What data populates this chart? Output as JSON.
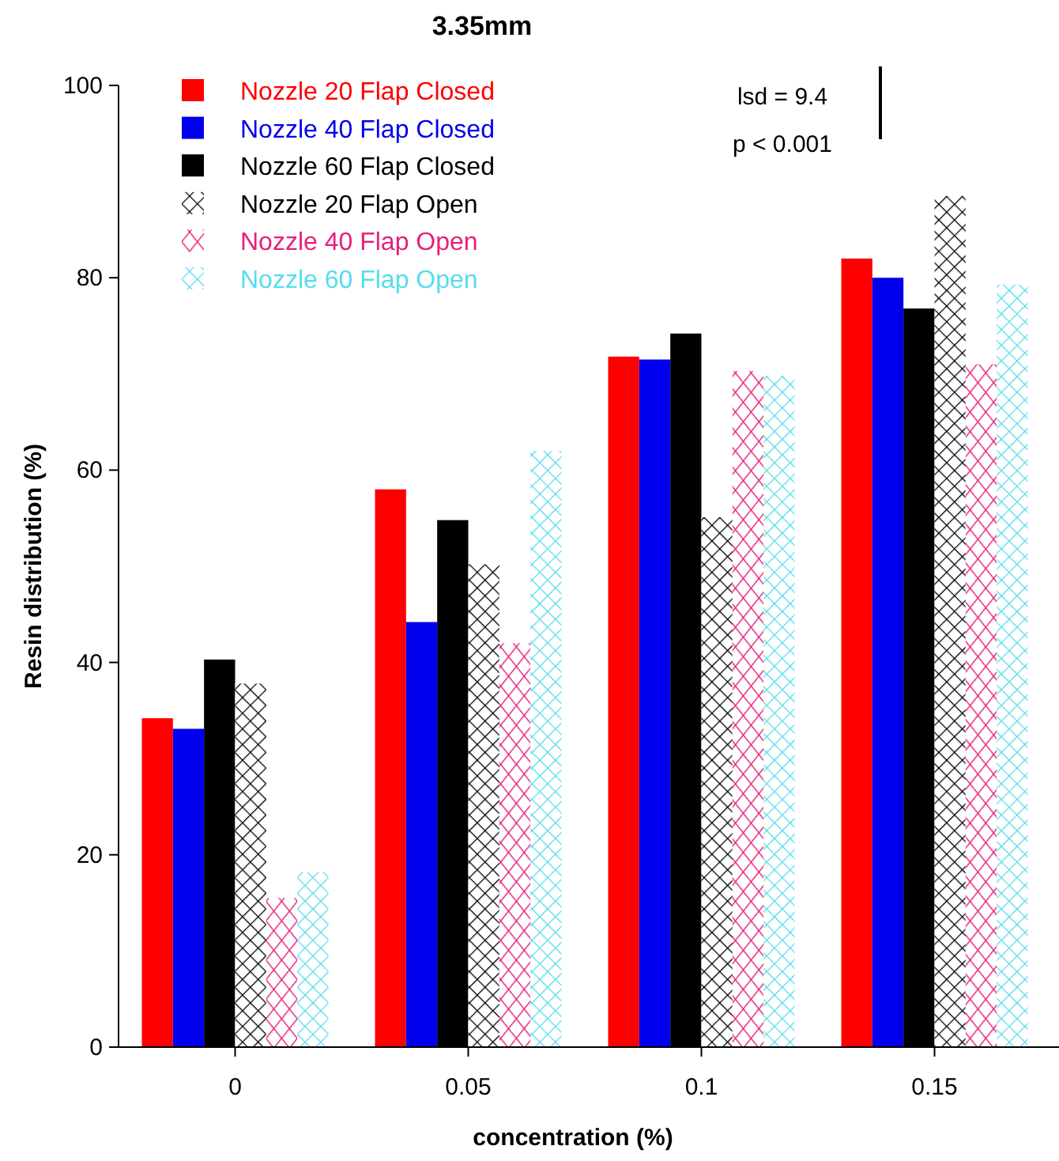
{
  "chart_data": {
    "type": "bar",
    "title": "3.35mm",
    "xlabel": "concentration (%)",
    "ylabel": "Resin distribution (%)",
    "categories": [
      "0",
      "0.05",
      "0.1",
      "0.15"
    ],
    "series": [
      {
        "name": "Nozzle 20 Flap Closed",
        "color": "#ff0000",
        "values": [
          34.2,
          58,
          71.8,
          82
        ]
      },
      {
        "name": "Nozzle 40 Flap Closed",
        "color": "#0000ee",
        "values": [
          33.1,
          44.2,
          71.5,
          80
        ]
      },
      {
        "name": "Nozzle 60 Flap Closed",
        "color": "#000000",
        "values": [
          40.3,
          54.8,
          74.2,
          76.8
        ]
      },
      {
        "name": "Nozzle 20 Flap Open",
        "color": "#000000",
        "marker": "cross",
        "values": [
          37.8,
          50.2,
          55.1,
          88.5
        ]
      },
      {
        "name": "Nozzle 40 Flap Open",
        "color": "#e8207a",
        "marker": "diamond",
        "values": [
          15.5,
          42,
          70.3,
          71
        ]
      },
      {
        "name": "Nozzle 60 Flap Open",
        "color": "#55ddee",
        "marker": "cross",
        "values": [
          18.2,
          62,
          69.8,
          79.3
        ]
      }
    ],
    "ylim": [
      0,
      100
    ],
    "yticks": [
      0,
      20,
      40,
      60,
      80,
      100
    ],
    "legend": "top left",
    "annotations": [
      "lsd = 9.4",
      "p < 0.001"
    ]
  }
}
